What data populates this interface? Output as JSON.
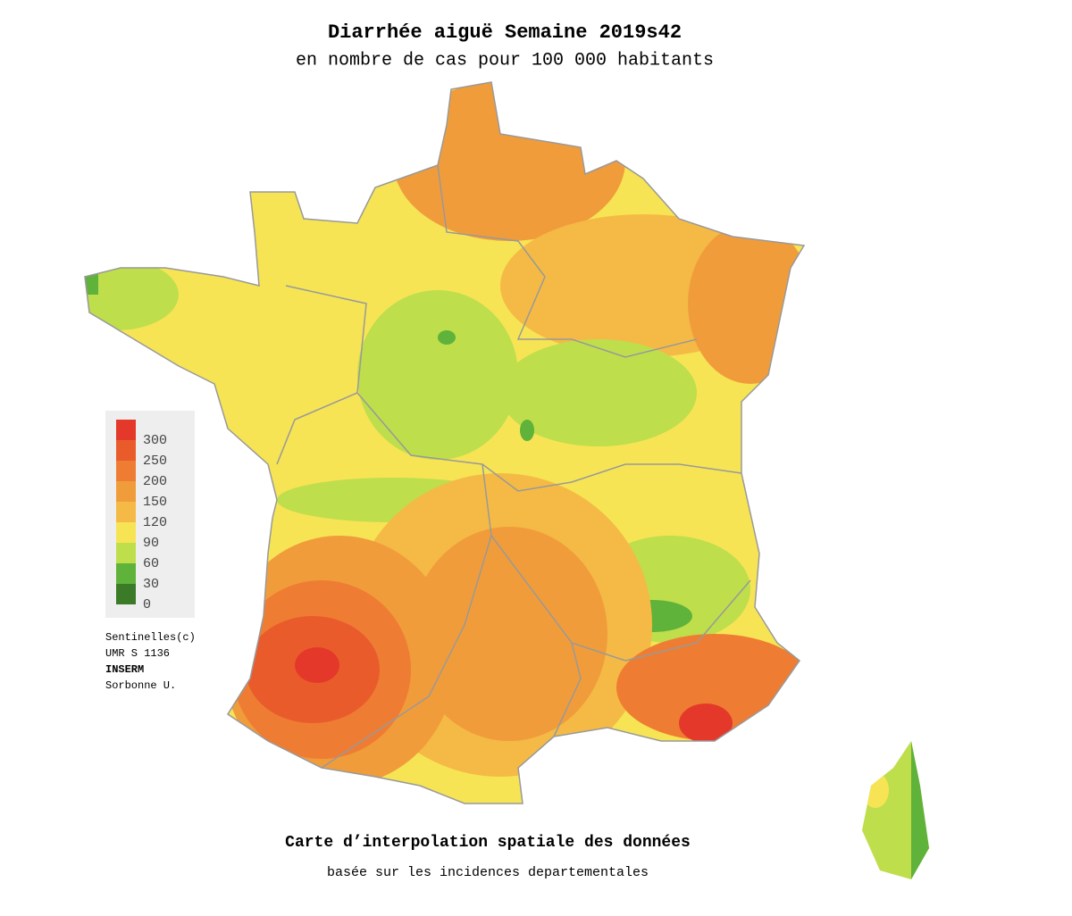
{
  "title": "Diarrhée aiguë Semaine 2019s42",
  "subtitle": "en nombre de cas pour 100 000 habitants",
  "legend": {
    "items": [
      {
        "value": 300,
        "color": "#e4392a"
      },
      {
        "value": 250,
        "color": "#ea5b2c"
      },
      {
        "value": 200,
        "color": "#ee7d33"
      },
      {
        "value": 150,
        "color": "#f19c3b"
      },
      {
        "value": 120,
        "color": "#f4ba45"
      },
      {
        "value": 90,
        "color": "#f6e455"
      },
      {
        "value": 60,
        "color": "#bede4c"
      },
      {
        "value": 30,
        "color": "#5fb23a"
      },
      {
        "value": 0,
        "color": "#3b7a27"
      }
    ]
  },
  "credits": [
    "Sentinelles(c)",
    "UMR S 1136",
    "INSERM",
    "Sorbonne U."
  ],
  "footer": {
    "title": "Carte d’interpolation spatiale des données",
    "subtitle": "basée sur les incidences departementales"
  }
}
